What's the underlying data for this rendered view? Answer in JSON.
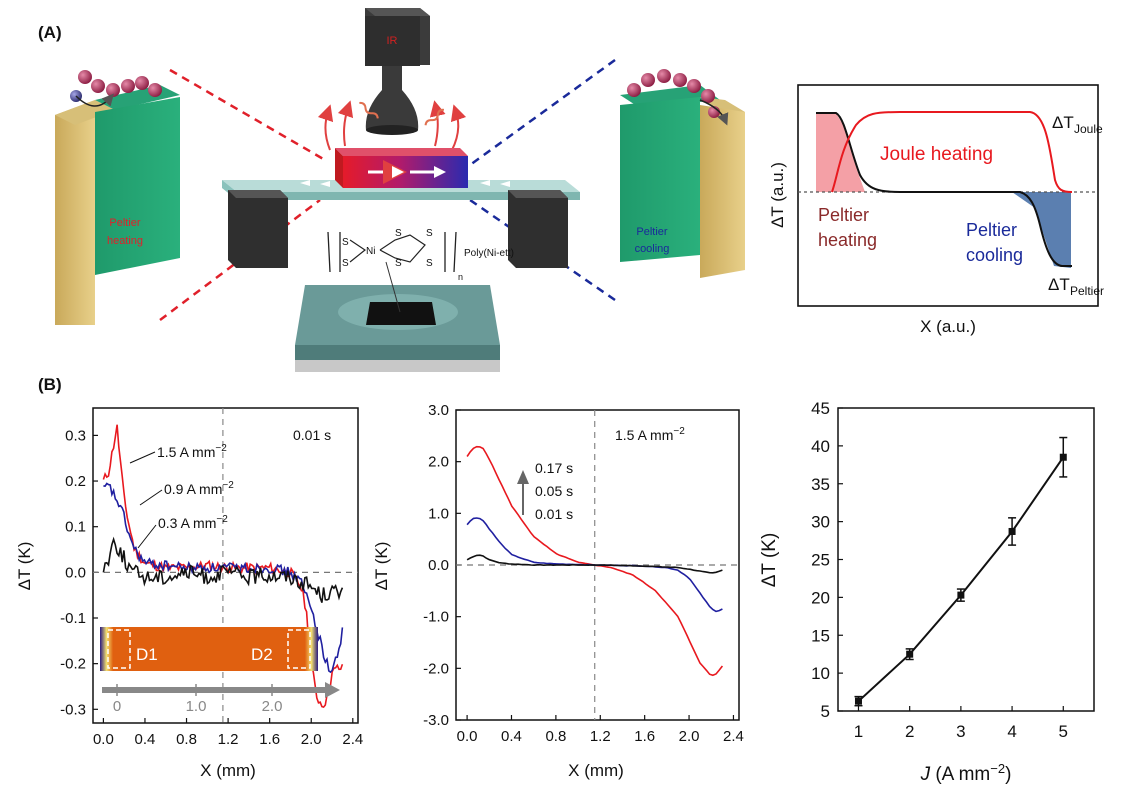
{
  "panel_labels": {
    "a": "(A)",
    "b": "(B)"
  },
  "schematic": {
    "ir_label": "IR",
    "left_label_1": "Peltier",
    "left_label_2": "heating",
    "right_label_1": "Peltier",
    "right_label_2": "cooling",
    "polymer_label": "Poly(Ni-ett)",
    "chem_s": "S",
    "chem_ni": "Ni",
    "chem_n": "n",
    "electron": "e"
  },
  "concept": {
    "ylabel": "ΔT (a.u.)",
    "xlabel": "X (a.u.)",
    "joule_label": "Joule heating",
    "peltier_heating_1": "Peltier",
    "peltier_heating_2": "heating",
    "peltier_cooling_1": "Peltier",
    "peltier_cooling_2": "cooling",
    "dt_joule_main": "ΔT",
    "dt_joule_sub": "Joule",
    "dt_peltier_main": "ΔT",
    "dt_peltier_sub": "Peltier",
    "colors": {
      "joule": "#e8191f",
      "cool_fill": "#5b7fb0",
      "heat_fill": "#f29aa0",
      "black": "#111111"
    }
  },
  "chart_data": [
    {
      "type": "line",
      "panel": "B-left",
      "xlabel": "X (mm)",
      "ylabel": "ΔT (K)",
      "xlim": [
        -0.1,
        2.45
      ],
      "ylim": [
        -0.33,
        0.36
      ],
      "xticks": [
        "0.0",
        "0.4",
        "0.8",
        "1.2",
        "1.6",
        "2.0",
        "2.4"
      ],
      "yticks": [
        "0.3",
        "0.2",
        "0.1",
        "0.0",
        "-0.1",
        "-0.2",
        "-0.3"
      ],
      "annotation_time": "0.01 s",
      "inset": {
        "marker_left": "D1",
        "marker_right": "D2",
        "scale": [
          "0",
          "1.0",
          "2.0"
        ]
      },
      "series": [
        {
          "name": "1.5 A mm^-2",
          "label_main": "1.5 A mm",
          "label_sup": "−2",
          "color": "#e8191f",
          "x": [
            0.0,
            0.05,
            0.1,
            0.13,
            0.16,
            0.2,
            0.25,
            0.3,
            0.4,
            0.6,
            0.8,
            1.0,
            1.2,
            1.4,
            1.6,
            1.8,
            1.9,
            1.95,
            2.0,
            2.05,
            2.1,
            2.15,
            2.2,
            2.25,
            2.3
          ],
          "y": [
            0.2,
            0.22,
            0.28,
            0.32,
            0.25,
            0.16,
            0.1,
            0.05,
            0.02,
            0.01,
            0.01,
            0.015,
            0.01,
            0.01,
            0.01,
            0.0,
            -0.03,
            -0.08,
            -0.2,
            -0.27,
            -0.29,
            -0.28,
            -0.22,
            -0.21,
            -0.21
          ]
        },
        {
          "name": "0.9 A mm^-2",
          "label_main": "0.9 A mm",
          "label_sup": "−2",
          "color": "#2020a0",
          "x": [
            0.0,
            0.05,
            0.1,
            0.15,
            0.2,
            0.25,
            0.3,
            0.4,
            0.6,
            0.8,
            1.0,
            1.2,
            1.4,
            1.6,
            1.8,
            1.9,
            2.0,
            2.05,
            2.1,
            2.15,
            2.2,
            2.25,
            2.3
          ],
          "y": [
            0.18,
            0.19,
            0.17,
            0.15,
            0.12,
            0.08,
            0.05,
            0.02,
            0.015,
            0.01,
            0.01,
            0.01,
            0.01,
            0.01,
            0.0,
            -0.02,
            -0.08,
            -0.12,
            -0.16,
            -0.2,
            -0.22,
            -0.18,
            -0.13
          ]
        },
        {
          "name": "0.3 A mm^-2",
          "label_main": "0.3 A mm",
          "label_sup": "−2",
          "color": "#111111",
          "x": [
            0.0,
            0.05,
            0.1,
            0.15,
            0.2,
            0.25,
            0.3,
            0.4,
            0.6,
            0.8,
            1.0,
            1.2,
            1.4,
            1.6,
            1.8,
            1.9,
            2.0,
            2.1,
            2.2,
            2.3
          ],
          "y": [
            0.01,
            0.03,
            0.07,
            0.05,
            0.03,
            0.01,
            0.0,
            -0.01,
            -0.01,
            0.0,
            -0.01,
            0.0,
            -0.01,
            -0.005,
            -0.01,
            -0.02,
            -0.03,
            -0.05,
            -0.04,
            -0.05
          ]
        }
      ]
    },
    {
      "type": "line",
      "panel": "B-middle",
      "xlabel": "X (mm)",
      "ylabel": "ΔT (K)",
      "xlim": [
        -0.1,
        2.45
      ],
      "ylim": [
        -3.0,
        3.0
      ],
      "xticks": [
        "0.0",
        "0.4",
        "0.8",
        "1.2",
        "1.6",
        "2.0",
        "2.4"
      ],
      "yticks": [
        "3.0",
        "2.0",
        "1.0",
        "0.0",
        "-1.0",
        "-2.0",
        "-3.0"
      ],
      "annotation_current": "1.5 A mm",
      "annotation_current_sup": "−2",
      "time_labels": [
        "0.17 s",
        "0.05 s",
        "0.01 s"
      ],
      "series": [
        {
          "name": "0.17 s",
          "color": "#e8191f",
          "x": [
            0.0,
            0.05,
            0.1,
            0.15,
            0.2,
            0.3,
            0.4,
            0.6,
            0.8,
            1.0,
            1.15,
            1.3,
            1.5,
            1.7,
            1.9,
            2.0,
            2.1,
            2.2,
            2.25,
            2.3
          ],
          "y": [
            2.1,
            2.25,
            2.3,
            2.25,
            2.05,
            1.6,
            1.15,
            0.55,
            0.22,
            0.05,
            0.0,
            -0.05,
            -0.2,
            -0.5,
            -1.0,
            -1.45,
            -1.9,
            -2.15,
            -2.1,
            -1.95
          ]
        },
        {
          "name": "0.05 s",
          "color": "#2020a0",
          "x": [
            0.0,
            0.05,
            0.1,
            0.15,
            0.2,
            0.3,
            0.4,
            0.6,
            0.8,
            1.0,
            1.15,
            1.4,
            1.6,
            1.8,
            1.9,
            2.0,
            2.1,
            2.2,
            2.25,
            2.3
          ],
          "y": [
            0.78,
            0.9,
            0.92,
            0.85,
            0.7,
            0.42,
            0.2,
            0.05,
            0.02,
            0.01,
            0.0,
            -0.01,
            -0.02,
            -0.05,
            -0.1,
            -0.25,
            -0.55,
            -0.85,
            -0.9,
            -0.85
          ]
        },
        {
          "name": "0.01 s",
          "color": "#111111",
          "x": [
            0.0,
            0.05,
            0.1,
            0.15,
            0.2,
            0.3,
            0.4,
            0.6,
            0.8,
            1.0,
            1.2,
            1.4,
            1.6,
            1.8,
            1.9,
            2.0,
            2.1,
            2.2,
            2.25,
            2.3
          ],
          "y": [
            0.1,
            0.16,
            0.2,
            0.17,
            0.1,
            0.04,
            0.02,
            0.0,
            0.0,
            0.0,
            0.0,
            -0.01,
            -0.02,
            -0.04,
            -0.05,
            -0.08,
            -0.12,
            -0.16,
            -0.14,
            -0.1
          ]
        }
      ]
    },
    {
      "type": "line",
      "panel": "B-right",
      "xlabel_main": "J",
      "xlabel_rest": " (A mm",
      "xlabel_sup": "−2",
      "xlabel_close": ")",
      "ylabel": "ΔT (K)",
      "xlim": [
        0.6,
        5.6
      ],
      "ylim": [
        5,
        45
      ],
      "xticks": [
        "1",
        "2",
        "3",
        "4",
        "5"
      ],
      "yticks": [
        "45",
        "40",
        "35",
        "30",
        "25",
        "20",
        "15",
        "10",
        "5"
      ],
      "series": [
        {
          "name": "ΔT vs J",
          "color": "#111111",
          "x": [
            1,
            2,
            3,
            4,
            5
          ],
          "y": [
            6.3,
            12.5,
            20.3,
            28.7,
            38.5
          ],
          "err": [
            0.6,
            0.7,
            0.8,
            1.8,
            2.6
          ]
        }
      ]
    }
  ]
}
